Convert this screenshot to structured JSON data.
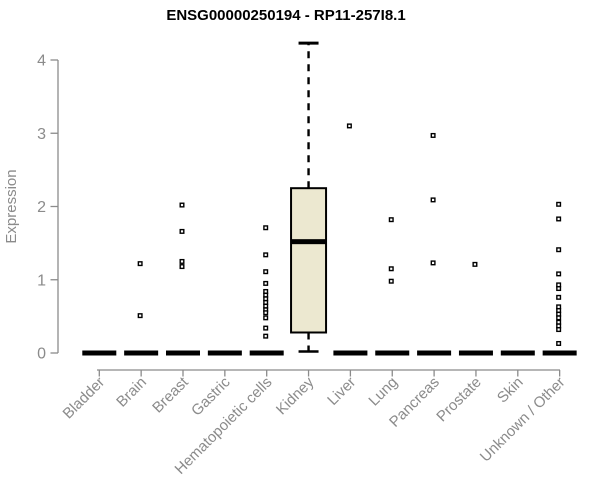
{
  "colors": {
    "axis": "#8b8b8b",
    "data": "#000000",
    "box_fill": "#ece8d0",
    "title": "#000000",
    "background": "#ffffff"
  },
  "chart_data": {
    "type": "boxplot",
    "title": "ENSG00000250194 - RP11-257I8.1",
    "xlabel": "",
    "ylabel": "Expression",
    "ylim": [
      0,
      4.3
    ],
    "yticks": [
      0,
      1,
      2,
      3,
      4
    ],
    "grid": false,
    "legend": false,
    "categories": [
      "Bladder",
      "Brain",
      "Breast",
      "Gastric",
      "Hematopoietic cells",
      "Kidney",
      "Liver",
      "Lung",
      "Pancreas",
      "Prostate",
      "Skin",
      "Unknown / Other"
    ],
    "boxes": [
      {
        "lo": 0,
        "q1": 0,
        "median": 0,
        "q3": 0,
        "hi": 0
      },
      {
        "lo": 0,
        "q1": 0,
        "median": 0,
        "q3": 0,
        "hi": 0
      },
      {
        "lo": 0,
        "q1": 0,
        "median": 0,
        "q3": 0,
        "hi": 0
      },
      {
        "lo": 0,
        "q1": 0,
        "median": 0,
        "q3": 0,
        "hi": 0
      },
      {
        "lo": 0,
        "q1": 0,
        "median": 0,
        "q3": 0,
        "hi": 0
      },
      {
        "lo": 0.02,
        "q1": 0.28,
        "median": 1.52,
        "q3": 2.25,
        "hi": 4.23
      },
      {
        "lo": 0,
        "q1": 0,
        "median": 0,
        "q3": 0,
        "hi": 0
      },
      {
        "lo": 0,
        "q1": 0,
        "median": 0,
        "q3": 0,
        "hi": 0
      },
      {
        "lo": 0,
        "q1": 0,
        "median": 0,
        "q3": 0,
        "hi": 0
      },
      {
        "lo": 0,
        "q1": 0,
        "median": 0,
        "q3": 0,
        "hi": 0
      },
      {
        "lo": 0,
        "q1": 0,
        "median": 0,
        "q3": 0,
        "hi": 0
      },
      {
        "lo": 0,
        "q1": 0,
        "median": 0,
        "q3": 0,
        "hi": 0
      }
    ],
    "outliers": [
      [],
      [
        1.22,
        0.51
      ],
      [
        2.02,
        1.66,
        1.25,
        1.18
      ],
      [],
      [
        1.71,
        1.34,
        1.11,
        0.95,
        0.84,
        0.79,
        0.74,
        0.69,
        0.64,
        0.59,
        0.55,
        0.48,
        0.34,
        0.23
      ],
      [],
      [
        3.1
      ],
      [
        1.82,
        1.15,
        0.98
      ],
      [
        2.97,
        2.09,
        1.23
      ],
      [
        1.21
      ],
      [],
      [
        2.03,
        1.83,
        1.41,
        1.08,
        0.93,
        0.88,
        0.76,
        0.63,
        0.58,
        0.53,
        0.48,
        0.42,
        0.37,
        0.32,
        0.13
      ]
    ]
  }
}
